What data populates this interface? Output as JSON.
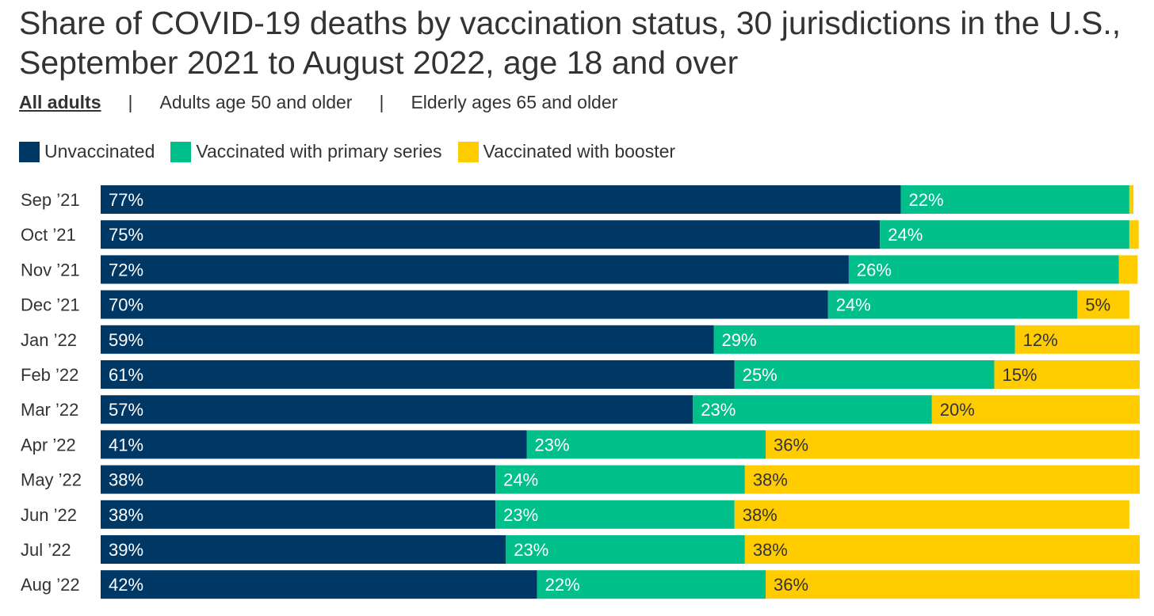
{
  "tabs": {
    "items": [
      "All adults",
      "Adults age 50 and older",
      "Elderly ages 65 and older"
    ],
    "separator": "|",
    "active_index": 0
  },
  "colors": {
    "unvaccinated": "#003865",
    "primary": "#00BF8A",
    "booster": "#FFCC00",
    "label_light": "#ffffff",
    "label_dark": "#333333"
  },
  "chart_data": {
    "type": "bar",
    "orientation": "horizontal",
    "stacked": true,
    "title": "Share of COVID-19 deaths by vaccination status, 30 jurisdictions in the U.S., September 2021 to August 2022, age 18 and over",
    "xlabel": "",
    "ylabel": "",
    "xlim": [
      0,
      100
    ],
    "legend_position": "top-left",
    "categories": [
      "Sep ’21",
      "Oct ’21",
      "Nov ’21",
      "Dec ’21",
      "Jan ’22",
      "Feb ’22",
      "Mar ’22",
      "Apr ’22",
      "May ’22",
      "Jun ’22",
      "Jul ’22",
      "Aug ’22"
    ],
    "series": [
      {
        "name": "Unvaccinated",
        "color_key": "unvaccinated",
        "values": [
          77,
          75,
          72,
          70,
          59,
          61,
          57,
          41,
          38,
          38,
          39,
          42
        ],
        "labels": [
          "77%",
          "75%",
          "72%",
          "70%",
          "59%",
          "61%",
          "57%",
          "41%",
          "38%",
          "38%",
          "39%",
          "42%"
        ]
      },
      {
        "name": "Vaccinated with primary series",
        "color_key": "primary",
        "values": [
          22,
          24,
          26,
          24,
          29,
          25,
          23,
          23,
          24,
          23,
          23,
          22
        ],
        "labels": [
          "22%",
          "24%",
          "26%",
          "24%",
          "29%",
          "25%",
          "23%",
          "23%",
          "24%",
          "23%",
          "23%",
          "22%"
        ]
      },
      {
        "name": "Vaccinated with booster",
        "color_key": "booster",
        "values": [
          0.4,
          0.9,
          1.8,
          5,
          12,
          15,
          20,
          36,
          38,
          38,
          38,
          36
        ],
        "labels": [
          "",
          "",
          "",
          "5%",
          "12%",
          "15%",
          "20%",
          "36%",
          "38%",
          "38%",
          "38%",
          "36%"
        ]
      }
    ]
  }
}
